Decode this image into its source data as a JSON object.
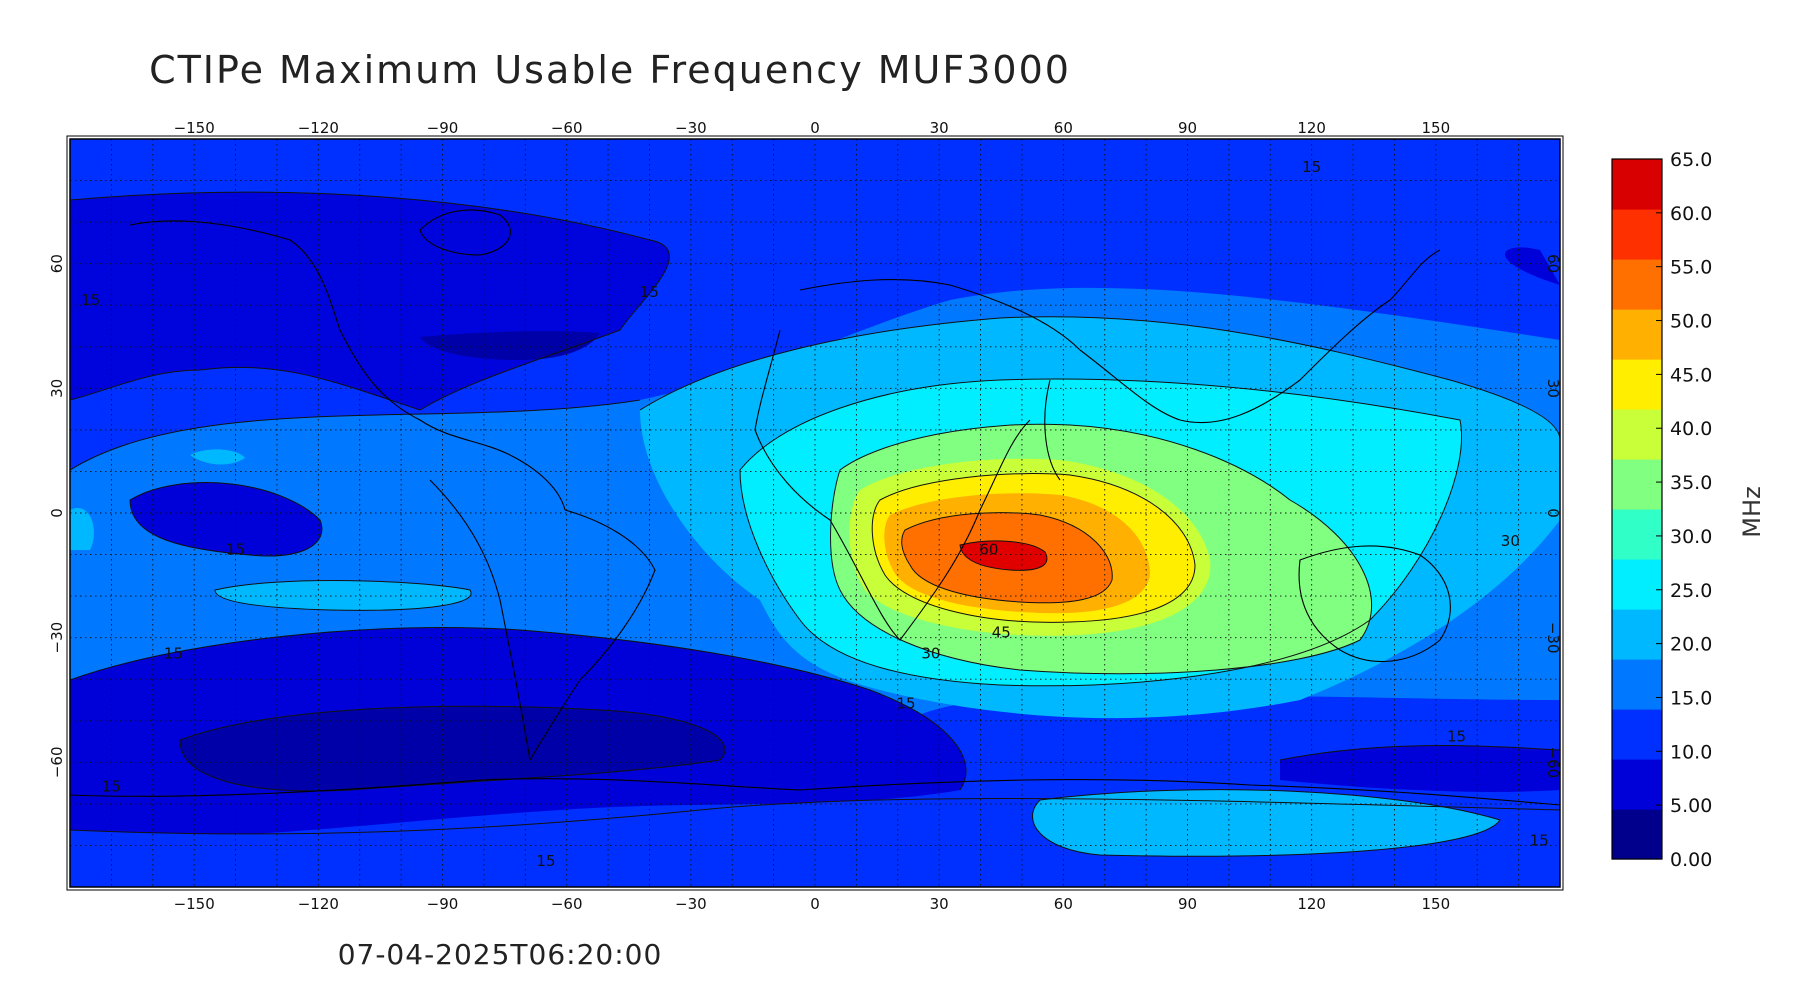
{
  "title": "CTIPe Maximum Usable Frequency MUF3000",
  "timestamp": "07-04-2025T06:20:00",
  "map": {
    "lon_range": [
      -180,
      180
    ],
    "lat_range": [
      -90,
      90
    ],
    "lon_ticks": [
      -150,
      -120,
      -90,
      -60,
      -30,
      0,
      30,
      60,
      90,
      120,
      150
    ],
    "lat_ticks": [
      60,
      30,
      0,
      -30,
      -60
    ],
    "graticule_step_deg": 10,
    "grid": "dotted"
  },
  "colorbar": {
    "unit_label": "MHz",
    "ticks": [
      "65.0",
      "60.0",
      "55.0",
      "50.0",
      "45.0",
      "40.0",
      "35.0",
      "30.0",
      "25.0",
      "20.0",
      "15.0",
      "10.0",
      "5.00",
      "0.00"
    ],
    "min": 0,
    "max": 65,
    "colors": [
      "#00008c",
      "#0000d8",
      "#0030ff",
      "#0078ff",
      "#00b8ff",
      "#00eeff",
      "#30ffc8",
      "#80ff80",
      "#c8ff38",
      "#ffee00",
      "#ffb000",
      "#ff7000",
      "#ff3000",
      "#d80000"
    ]
  },
  "contour_labels": [
    {
      "text": "15",
      "lon": -175,
      "lat": 50
    },
    {
      "text": "15",
      "lon": -40,
      "lat": 52
    },
    {
      "text": "15",
      "lon": 120,
      "lat": 82
    },
    {
      "text": "15",
      "lon": -140,
      "lat": -10
    },
    {
      "text": "15",
      "lon": -155,
      "lat": -35
    },
    {
      "text": "15",
      "lon": -170,
      "lat": -67
    },
    {
      "text": "15",
      "lon": -65,
      "lat": -85
    },
    {
      "text": "15",
      "lon": 22,
      "lat": -47
    },
    {
      "text": "15",
      "lon": 155,
      "lat": -55
    },
    {
      "text": "15",
      "lon": 175,
      "lat": -80
    },
    {
      "text": "30",
      "lon": 28,
      "lat": -35
    },
    {
      "text": "30",
      "lon": 168,
      "lat": -8
    },
    {
      "text": "45",
      "lon": 45,
      "lat": -30
    },
    {
      "text": "60",
      "lon": 42,
      "lat": -10
    }
  ]
}
